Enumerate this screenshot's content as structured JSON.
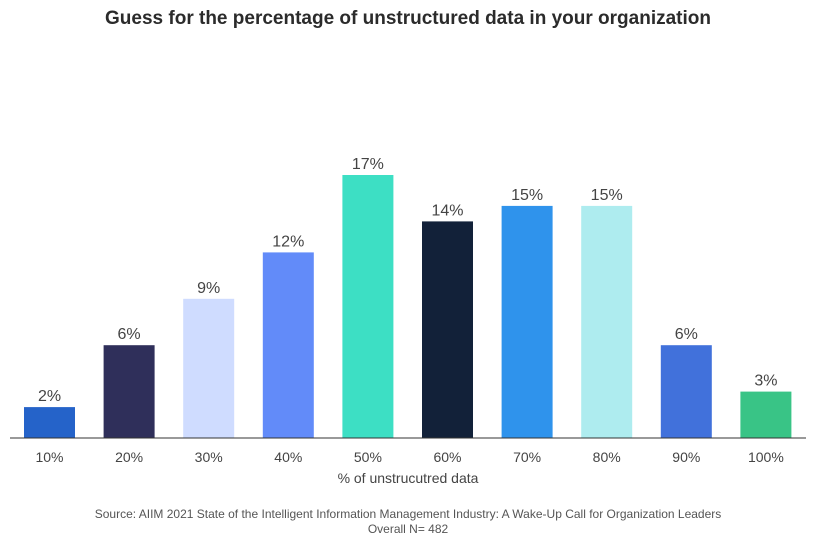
{
  "chart_data": {
    "type": "bar",
    "title": "Guess for the percentage of unstructured data in your organization",
    "xlabel": "% of unstrucutred data",
    "ylabel": "",
    "categories": [
      "10%",
      "20%",
      "30%",
      "40%",
      "50%",
      "60%",
      "70%",
      "80%",
      "90%",
      "100%"
    ],
    "values": [
      2,
      6,
      9,
      12,
      17,
      14,
      15,
      15,
      6,
      3
    ],
    "value_labels": [
      "2%",
      "6%",
      "9%",
      "12%",
      "17%",
      "14%",
      "15%",
      "15%",
      "6%",
      "3%"
    ],
    "colors": [
      "#2563c9",
      "#2f2f5a",
      "#cfdcff",
      "#628bf9",
      "#3ddfc4",
      "#122139",
      "#2f93ec",
      "#aeecef",
      "#4171db",
      "#39c486"
    ],
    "ylim": [
      0,
      17
    ],
    "grid": false,
    "legend": "none"
  },
  "source_line1": "Source: AIIM 2021 State of the Intelligent Information Management Industry: A Wake-Up Call for Organization Leaders",
  "source_line2": "Overall N= 482"
}
